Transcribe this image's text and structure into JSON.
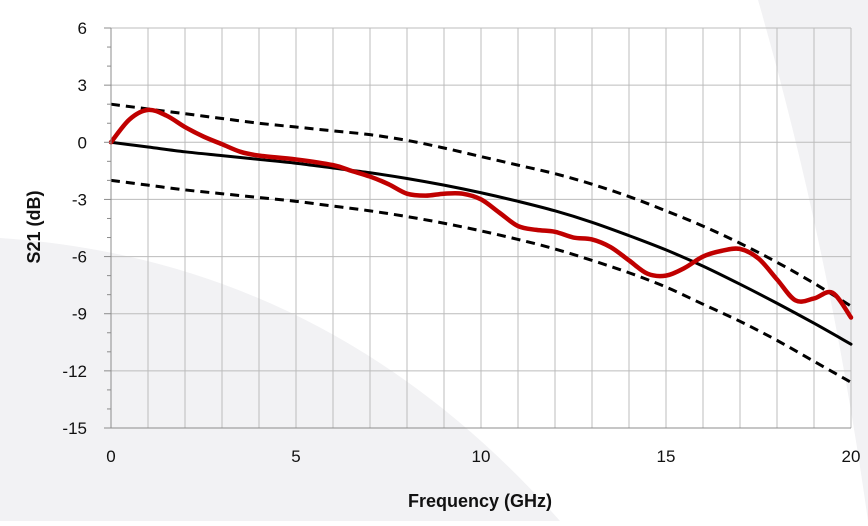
{
  "chart_data": {
    "type": "line",
    "title": "",
    "xlabel": "Frequency (GHz)",
    "ylabel": "S21 (dB)",
    "xlim": [
      0,
      20
    ],
    "ylim": [
      -15,
      6
    ],
    "x_ticks": [
      0,
      5,
      10,
      15,
      20
    ],
    "y_ticks": [
      6,
      3,
      0,
      -3,
      -6,
      -9,
      -12,
      -15
    ],
    "x_tick_labels": [
      "0",
      "5",
      "10",
      "15",
      "20"
    ],
    "y_tick_labels": [
      "6",
      "3",
      "0",
      "-3",
      "-6",
      "-9",
      "-12",
      "-15"
    ],
    "x_grid_step": 1,
    "y_grid_step": 3,
    "grid": true,
    "legend": "none",
    "series": [
      {
        "style": "dashed",
        "color": "#000000",
        "x": [
          0,
          1,
          2,
          3,
          4,
          5,
          6,
          7,
          8,
          9,
          10,
          11,
          12,
          13,
          14,
          15,
          16,
          17,
          18,
          19,
          20
        ],
        "y": [
          2.0,
          1.75,
          1.5,
          1.25,
          1.0,
          0.8,
          0.6,
          0.4,
          0.1,
          -0.3,
          -0.75,
          -1.2,
          -1.65,
          -2.2,
          -2.85,
          -3.6,
          -4.4,
          -5.3,
          -6.3,
          -7.4,
          -8.6
        ]
      },
      {
        "style": "solid",
        "color": "#000000",
        "x": [
          0,
          1,
          2,
          3,
          4,
          5,
          6,
          7,
          8,
          9,
          10,
          11,
          12,
          13,
          14,
          15,
          16,
          17,
          18,
          19,
          20
        ],
        "y": [
          0.0,
          -0.25,
          -0.5,
          -0.7,
          -0.9,
          -1.1,
          -1.35,
          -1.6,
          -1.9,
          -2.25,
          -2.65,
          -3.1,
          -3.6,
          -4.2,
          -4.9,
          -5.65,
          -6.5,
          -7.45,
          -8.45,
          -9.5,
          -10.6
        ]
      },
      {
        "style": "dashed",
        "color": "#000000",
        "x": [
          0,
          1,
          2,
          3,
          4,
          5,
          6,
          7,
          8,
          9,
          10,
          11,
          12,
          13,
          14,
          15,
          16,
          17,
          18,
          19,
          20
        ],
        "y": [
          -2.0,
          -2.25,
          -2.5,
          -2.7,
          -2.9,
          -3.1,
          -3.35,
          -3.6,
          -3.9,
          -4.25,
          -4.65,
          -5.1,
          -5.6,
          -6.2,
          -6.85,
          -7.6,
          -8.5,
          -9.4,
          -10.4,
          -11.5,
          -12.6
        ]
      },
      {
        "style": "solid",
        "color": "#c00000",
        "x": [
          0,
          0.5,
          1,
          1.5,
          2,
          2.5,
          3,
          3.5,
          4,
          5,
          6,
          6.5,
          7,
          7.5,
          8,
          8.5,
          9,
          9.5,
          10,
          10.5,
          11,
          11.5,
          12,
          12.5,
          13,
          13.5,
          14,
          14.5,
          15,
          15.5,
          16,
          16.5,
          17,
          17.5,
          18,
          18.5,
          19,
          19.5,
          20
        ],
        "y": [
          0.0,
          1.2,
          1.7,
          1.4,
          0.8,
          0.3,
          -0.1,
          -0.5,
          -0.7,
          -0.9,
          -1.2,
          -1.5,
          -1.8,
          -2.2,
          -2.7,
          -2.8,
          -2.7,
          -2.7,
          -3.0,
          -3.7,
          -4.4,
          -4.6,
          -4.7,
          -5.0,
          -5.1,
          -5.5,
          -6.2,
          -6.9,
          -7.0,
          -6.6,
          -6.0,
          -5.7,
          -5.6,
          -6.1,
          -7.2,
          -8.3,
          -8.2,
          -7.9,
          -9.2
        ]
      }
    ]
  }
}
